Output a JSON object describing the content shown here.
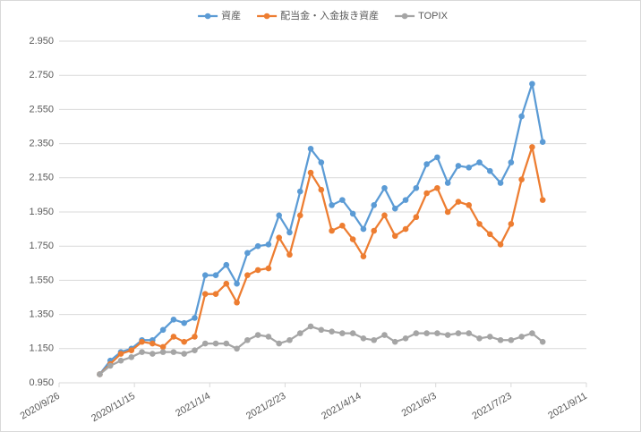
{
  "chart_data": {
    "type": "line",
    "x": [
      "2020/10/23",
      "2020/10/30",
      "2020/11/6",
      "2020/11/13",
      "2020/11/20",
      "2020/11/27",
      "2020/12/4",
      "2020/12/11",
      "2020/12/18",
      "2020/12/25",
      "2021/1/1",
      "2021/1/8",
      "2021/1/15",
      "2021/1/22",
      "2021/1/29",
      "2021/2/5",
      "2021/2/12",
      "2021/2/19",
      "2021/2/26",
      "2021/3/5",
      "2021/3/12",
      "2021/3/19",
      "2021/3/26",
      "2021/4/2",
      "2021/4/9",
      "2021/4/16",
      "2021/4/23",
      "2021/4/30",
      "2021/5/7",
      "2021/5/14",
      "2021/5/21",
      "2021/5/28",
      "2021/6/4",
      "2021/6/11",
      "2021/6/18",
      "2021/6/25",
      "2021/7/2",
      "2021/7/9",
      "2021/7/16",
      "2021/7/23",
      "2021/7/30",
      "2021/8/6",
      "2021/8/13"
    ],
    "series": [
      {
        "name": "資産",
        "color": "#5b9bd5",
        "values": [
          1.0,
          1.08,
          1.13,
          1.15,
          1.2,
          1.2,
          1.26,
          1.32,
          1.3,
          1.33,
          1.58,
          1.58,
          1.64,
          1.53,
          1.71,
          1.75,
          1.76,
          1.93,
          1.83,
          2.07,
          2.32,
          2.24,
          1.99,
          2.02,
          1.94,
          1.85,
          1.99,
          2.09,
          1.97,
          2.02,
          2.09,
          2.23,
          2.27,
          2.12,
          2.22,
          2.21,
          2.24,
          2.19,
          2.12,
          2.24,
          2.51,
          2.7,
          2.36
        ]
      },
      {
        "name": "配当金・入金抜き資産",
        "color": "#ed7d31",
        "values": [
          1.0,
          1.06,
          1.12,
          1.14,
          1.19,
          1.18,
          1.16,
          1.22,
          1.19,
          1.22,
          1.47,
          1.47,
          1.53,
          1.42,
          1.58,
          1.61,
          1.62,
          1.8,
          1.7,
          1.93,
          2.18,
          2.08,
          1.84,
          1.87,
          1.79,
          1.69,
          1.84,
          1.93,
          1.81,
          1.85,
          1.92,
          2.06,
          2.09,
          1.95,
          2.01,
          1.99,
          1.88,
          1.82,
          1.76,
          1.88,
          2.14,
          2.33,
          2.02
        ]
      },
      {
        "name": "TOPIX",
        "color": "#a5a5a5",
        "values": [
          1.0,
          1.05,
          1.08,
          1.1,
          1.13,
          1.12,
          1.13,
          1.13,
          1.12,
          1.14,
          1.18,
          1.18,
          1.18,
          1.15,
          1.2,
          1.23,
          1.22,
          1.18,
          1.2,
          1.24,
          1.28,
          1.26,
          1.25,
          1.24,
          1.24,
          1.21,
          1.2,
          1.23,
          1.19,
          1.21,
          1.24,
          1.24,
          1.24,
          1.23,
          1.24,
          1.24,
          1.21,
          1.22,
          1.2,
          1.2,
          1.22,
          1.24,
          1.19
        ]
      }
    ],
    "xlim": [
      "2020/9/26",
      "2021/9/11"
    ],
    "xticks": [
      "2020/9/26",
      "2020/11/15",
      "2021/1/4",
      "2021/2/23",
      "2021/4/14",
      "2021/6/3",
      "2021/7/23",
      "2021/9/11"
    ],
    "ylim": [
      0.95,
      2.95
    ],
    "yticks": [
      {
        "value": 0.95,
        "label": "0.950"
      },
      {
        "value": 1.15,
        "label": "1.150"
      },
      {
        "value": 1.35,
        "label": "1.350"
      },
      {
        "value": 1.55,
        "label": "1.550"
      },
      {
        "value": 1.75,
        "label": "1.750"
      },
      {
        "value": 1.95,
        "label": "1.950"
      },
      {
        "value": 2.15,
        "label": "2.150"
      },
      {
        "value": 2.35,
        "label": "2.350"
      },
      {
        "value": 2.55,
        "label": "2.550"
      },
      {
        "value": 2.75,
        "label": "2.750"
      },
      {
        "value": 2.95,
        "label": "2.950"
      }
    ],
    "grid": true,
    "legend": "top"
  }
}
